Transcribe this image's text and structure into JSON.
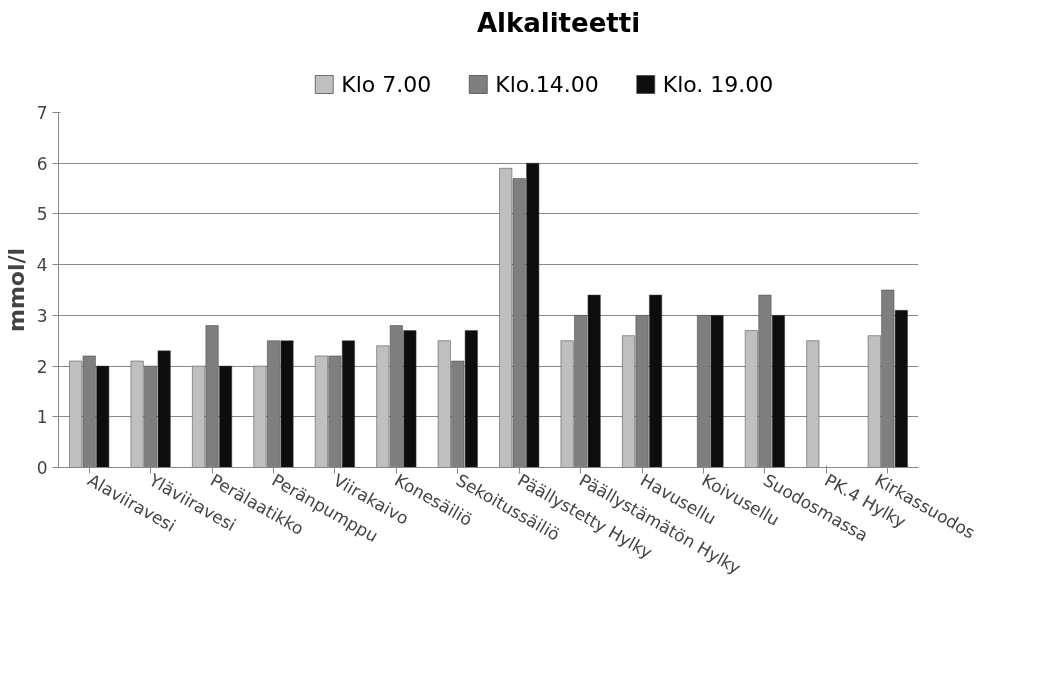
{
  "chart_data": {
    "type": "bar",
    "title": "Alkaliteetti",
    "ylabel": "mmol/l",
    "categories": [
      "Alaviiravesi",
      "Yläviiravesi",
      "Perälaatikko",
      "Peränpumppu",
      "Viirakaivo",
      "Konesäiliö",
      "Sekoitussäiliö",
      "Päällystetty Hylky",
      "Päällystämätön Hylky",
      "Havusellu",
      "Koivusellu",
      "Suodosmassa",
      "PK.4 Hylky",
      "Kirkassuodos"
    ],
    "series": [
      {
        "name": "Klo 7.00",
        "color": "#bfbfbf",
        "values": [
          2.1,
          2.1,
          2.0,
          2.0,
          2.2,
          2.4,
          2.5,
          5.9,
          2.5,
          2.6,
          null,
          2.7,
          2.5,
          2.6
        ]
      },
      {
        "name": "Klo.14.00",
        "color": "#7f7f7f",
        "values": [
          2.2,
          2.0,
          2.8,
          2.5,
          2.2,
          2.8,
          2.1,
          5.7,
          3.0,
          3.0,
          3.0,
          3.4,
          null,
          3.5
        ]
      },
      {
        "name": "Klo. 19.00",
        "color": "#0d0d0d",
        "values": [
          2.0,
          2.3,
          2.0,
          2.5,
          2.5,
          2.7,
          2.7,
          6.0,
          3.4,
          3.4,
          3.0,
          3.0,
          null,
          3.1
        ]
      }
    ],
    "ylim": [
      0,
      7
    ],
    "yticks": [
      0,
      1,
      2,
      3,
      4,
      5,
      6,
      7
    ],
    "grid": "y",
    "legend": "top"
  }
}
